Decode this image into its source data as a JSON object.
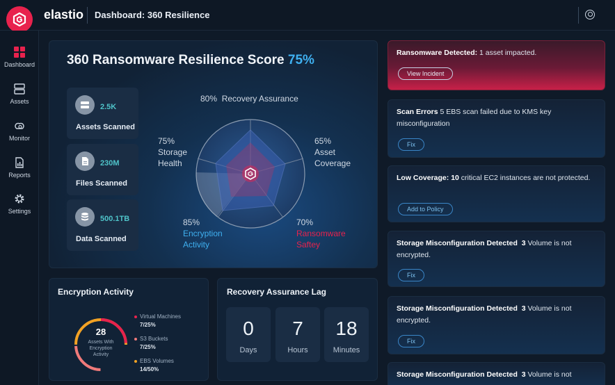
{
  "app": {
    "brand": "elastio",
    "breadcrumb": "Dashboard: 360 Resilience"
  },
  "colors": {
    "accent": "#e8224d",
    "highlight": "#3fb0f0",
    "stat_value": "#4fc3c9",
    "danger": "#e8224d"
  },
  "sidebar": {
    "items": [
      {
        "label": "Dashboard",
        "icon": "dashboard-icon"
      },
      {
        "label": "Assets",
        "icon": "assets-icon"
      },
      {
        "label": "Monitor",
        "icon": "monitor-icon"
      },
      {
        "label": "Reports",
        "icon": "reports-icon"
      },
      {
        "label": "Settings",
        "icon": "gear-icon"
      }
    ]
  },
  "score": {
    "title": "360 Ransomware Resilience Score",
    "value": "75%",
    "stats": [
      {
        "value": "2.5K",
        "label": "Assets Scanned",
        "icon": "server-icon"
      },
      {
        "value": "230M",
        "label": "Files Scanned",
        "icon": "file-icon"
      },
      {
        "value": "500.1TB",
        "label": "Data Scanned",
        "icon": "database-icon"
      }
    ],
    "radar": {
      "recovery": {
        "pct": "80%",
        "label": "Recovery Assurance"
      },
      "asset_coverage": {
        "pct": "65%",
        "label1": "Asset",
        "label2": "Coverage"
      },
      "ransomware": {
        "pct": "70%",
        "label1": "Ransomware",
        "label2": "Saftey"
      },
      "encryption": {
        "pct": "85%",
        "label1": "Encryption",
        "label2": "Activity"
      },
      "storage": {
        "pct": "75%",
        "label1": "Storage",
        "label2": "Health"
      }
    }
  },
  "alerts": [
    {
      "title": "Ransomware Detected:",
      "text": "1 asset impacted.",
      "button": "View Incident"
    },
    {
      "title": "Scan Errors",
      "text": "5 EBS scan failed due to KMS key misconfiguration",
      "button": "Fix"
    },
    {
      "title": "Low Coverage:",
      "count": "10",
      "text": "critical EC2 instances are not protected.",
      "button": "Add to Policy"
    },
    {
      "title": "Storage Misconfiguration Detected",
      "count": "3",
      "text": "Volume is not encrypted.",
      "button": "Fix"
    },
    {
      "title": "Storage Misconfiguration Detected",
      "count": "3",
      "text": "Volume is not encrypted.",
      "button": "Fix"
    },
    {
      "title": "Storage Misconfiguration Detected",
      "count": "3",
      "text": "Volume is not"
    }
  ],
  "encryption": {
    "title": "Encryption Activity",
    "center_value": "28",
    "center_label1": "Assets With",
    "center_label2": "Encryption",
    "center_label3": "Activity",
    "items": [
      {
        "label": "Virtual Machines",
        "value": "7/25%",
        "color": "#e8224d"
      },
      {
        "label": "S3 Buckets",
        "value": "7/25%",
        "color": "#f07a7a"
      },
      {
        "label": "EBS Volumes",
        "value": "14/50%",
        "color": "#f2a224"
      }
    ]
  },
  "lag": {
    "title": "Recovery Assurance Lag",
    "boxes": [
      {
        "num": "0",
        "unit": "Days"
      },
      {
        "num": "7",
        "unit": "Hours"
      },
      {
        "num": "18",
        "unit": "Minutes"
      }
    ]
  }
}
